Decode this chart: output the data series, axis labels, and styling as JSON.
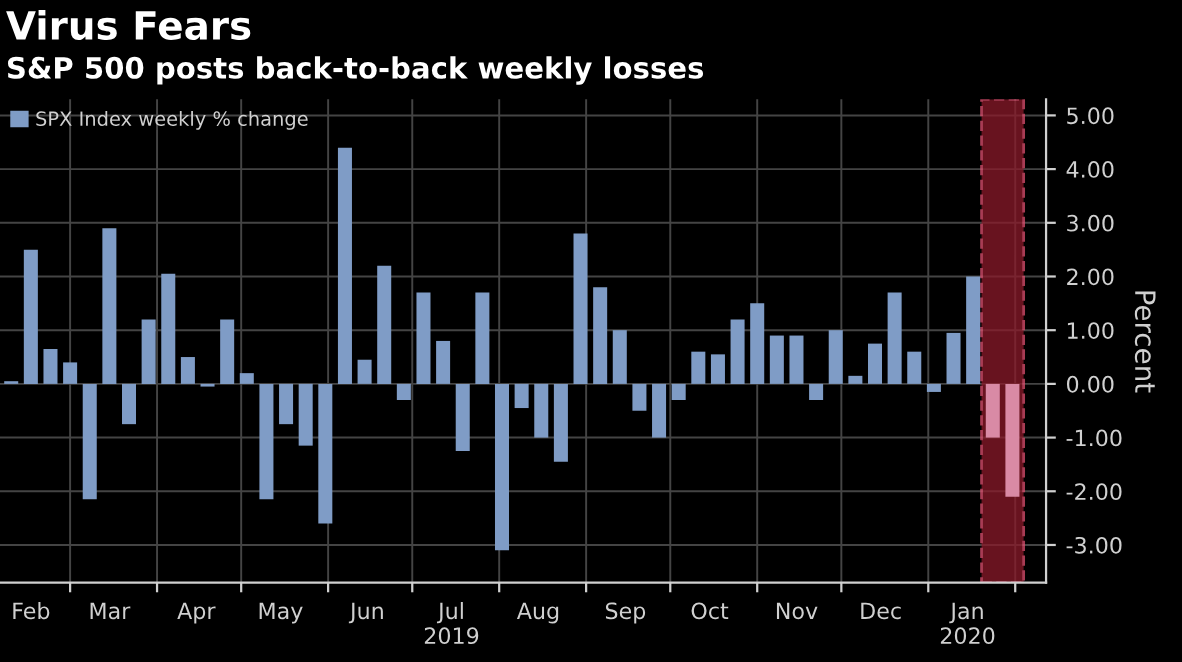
{
  "chart_data": {
    "type": "bar",
    "title": "Virus Fears",
    "subtitle": "S&P 500 posts back-to-back weekly losses",
    "ylabel": "Percent",
    "x": [
      "2019-02-08",
      "2019-02-15",
      "2019-02-22",
      "2019-03-01",
      "2019-03-08",
      "2019-03-15",
      "2019-03-22",
      "2019-03-29",
      "2019-04-05",
      "2019-04-12",
      "2019-04-19",
      "2019-04-26",
      "2019-05-03",
      "2019-05-10",
      "2019-05-17",
      "2019-05-24",
      "2019-05-31",
      "2019-06-07",
      "2019-06-14",
      "2019-06-21",
      "2019-06-28",
      "2019-07-05",
      "2019-07-12",
      "2019-07-19",
      "2019-07-26",
      "2019-08-02",
      "2019-08-09",
      "2019-08-16",
      "2019-08-23",
      "2019-08-30",
      "2019-09-06",
      "2019-09-13",
      "2019-09-20",
      "2019-09-27",
      "2019-10-04",
      "2019-10-11",
      "2019-10-18",
      "2019-10-25",
      "2019-11-01",
      "2019-11-08",
      "2019-11-15",
      "2019-11-22",
      "2019-11-29",
      "2019-12-06",
      "2019-12-13",
      "2019-12-20",
      "2019-12-27",
      "2020-01-03",
      "2020-01-10",
      "2020-01-17",
      "2020-01-24",
      "2020-01-31"
    ],
    "series": [
      {
        "name": "SPX Index weekly % change",
        "color": "#7f9cc6",
        "values": [
          0.05,
          2.5,
          0.65,
          0.4,
          -2.15,
          2.9,
          -0.75,
          1.2,
          2.05,
          0.5,
          -0.05,
          1.2,
          0.2,
          -2.15,
          -0.75,
          -1.15,
          -2.6,
          4.4,
          0.45,
          2.2,
          -0.3,
          1.7,
          0.8,
          -1.25,
          1.7,
          -3.1,
          -0.45,
          -1.0,
          -1.45,
          2.8,
          1.8,
          1.0,
          -0.5,
          -1.0,
          -0.3,
          0.6,
          0.55,
          1.2,
          1.5,
          0.9,
          0.9,
          -0.3,
          1.0,
          0.15,
          0.75,
          1.7,
          0.6,
          -0.15,
          0.95,
          2.0,
          -1.0,
          -2.1
        ],
        "colors": [
          "#7f9cc6",
          "#7f9cc6",
          "#7f9cc6",
          "#7f9cc6",
          "#7f9cc6",
          "#7f9cc6",
          "#7f9cc6",
          "#7f9cc6",
          "#7f9cc6",
          "#7f9cc6",
          "#7f9cc6",
          "#7f9cc6",
          "#7f9cc6",
          "#7f9cc6",
          "#7f9cc6",
          "#7f9cc6",
          "#7f9cc6",
          "#7f9cc6",
          "#7f9cc6",
          "#7f9cc6",
          "#7f9cc6",
          "#7f9cc6",
          "#7f9cc6",
          "#7f9cc6",
          "#7f9cc6",
          "#7f9cc6",
          "#7f9cc6",
          "#7f9cc6",
          "#7f9cc6",
          "#7f9cc6",
          "#7f9cc6",
          "#7f9cc6",
          "#7f9cc6",
          "#7f9cc6",
          "#7f9cc6",
          "#7f9cc6",
          "#7f9cc6",
          "#7f9cc6",
          "#7f9cc6",
          "#7f9cc6",
          "#7f9cc6",
          "#7f9cc6",
          "#7f9cc6",
          "#7f9cc6",
          "#7f9cc6",
          "#7f9cc6",
          "#7f9cc6",
          "#7f9cc6",
          "#7f9cc6",
          "#7f9cc6",
          "#d98aa5",
          "#d98aa5"
        ]
      }
    ],
    "xlim": [
      "2019-02-04",
      "2020-02-12"
    ],
    "xticks": [
      {
        "value": "2019-02-15",
        "label": "Feb"
      },
      {
        "value": "2019-03-01",
        "label": null
      },
      {
        "value": "2019-03-15",
        "label": "Mar"
      },
      {
        "value": "2019-04-01",
        "label": null
      },
      {
        "value": "2019-04-15",
        "label": "Apr"
      },
      {
        "value": "2019-05-01",
        "label": null
      },
      {
        "value": "2019-05-15",
        "label": "May"
      },
      {
        "value": "2019-06-01",
        "label": null
      },
      {
        "value": "2019-06-15",
        "label": "Jun"
      },
      {
        "value": "2019-07-01",
        "label": null
      },
      {
        "value": "2019-07-15",
        "label": "Jul\n2019"
      },
      {
        "value": "2019-08-01",
        "label": null
      },
      {
        "value": "2019-08-15",
        "label": "Aug"
      },
      {
        "value": "2019-09-01",
        "label": null
      },
      {
        "value": "2019-09-15",
        "label": "Sep"
      },
      {
        "value": "2019-10-01",
        "label": null
      },
      {
        "value": "2019-10-15",
        "label": "Oct"
      },
      {
        "value": "2019-11-01",
        "label": null
      },
      {
        "value": "2019-11-15",
        "label": "Nov"
      },
      {
        "value": "2019-12-01",
        "label": null
      },
      {
        "value": "2019-12-15",
        "label": "Dec"
      },
      {
        "value": "2020-01-01",
        "label": null
      },
      {
        "value": "2020-01-15",
        "label": "Jan\n2020"
      },
      {
        "value": "2020-02-01",
        "label": null
      }
    ],
    "ylim": [
      -3.7,
      5.3
    ],
    "yticks": [
      {
        "value": -3,
        "label": "-3.00"
      },
      {
        "value": -2,
        "label": "-2.00"
      },
      {
        "value": -1,
        "label": "-1.00"
      },
      {
        "value": 0,
        "label": "0.00"
      },
      {
        "value": 1,
        "label": "1.00"
      },
      {
        "value": 2,
        "label": "2.00"
      },
      {
        "value": 3,
        "label": "3.00"
      },
      {
        "value": 4,
        "label": "4.00"
      },
      {
        "value": 5,
        "label": "5.00"
      }
    ],
    "bands": [
      {
        "axis": "x",
        "from": "2020-01-20",
        "to": "2020-02-04",
        "color": "#8b1a2a"
      }
    ],
    "grid": true,
    "legend": "top left"
  }
}
